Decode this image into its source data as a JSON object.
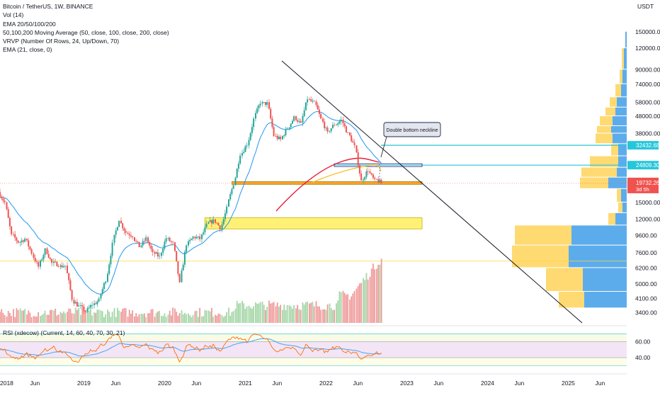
{
  "legend": {
    "symbol": "Bitcoin / TetherUS, 1W, BINANCE",
    "volume": "Vol (14)",
    "ema_set": "EMA 20/50/100/200",
    "ma_set": "50,100,200 Moving Average (50, close, 100, close, 200, close)",
    "vrvp": "VRVP (Number Of Rows, 24, Up/Down, 70)",
    "ema21": "EMA (21, close, 0)"
  },
  "rsi_legend": "RSI (xdecow) (Current, 14, 60, 40, 70, 30, 21)",
  "currency": "USDT",
  "annotation": "Double bottom neckline",
  "colors": {
    "up": "#26a69a",
    "down": "#ef5350",
    "ema21": "#2196f3",
    "ma_red": "#e91e3c",
    "ma_yellow": "#fbc02d",
    "zone": "#fff176",
    "vrvp_up": "#4aa3ea",
    "vrvp_down": "#ffd45a",
    "trendline": "#131722",
    "neckline": "#26c6da",
    "price_tag": "#ef5350",
    "rsi_line": "#ff6d00",
    "rsi_signal": "#42a5f5"
  },
  "chart_data": {
    "type": "candlestick",
    "price_scale": "log",
    "ylim": [
      2900,
      230000
    ],
    "y_ticks": [
      150000,
      120000,
      90000,
      74000,
      58000,
      48000,
      38000,
      30000,
      24000,
      19000,
      15000,
      12000,
      9600,
      7600,
      6200,
      5000,
      4100,
      3400
    ],
    "y_tick_labels": [
      "150000.00",
      "120000.00",
      "90000.00",
      "74000.00",
      "58000.00",
      "48000.00",
      "38000.00",
      "",
      "",
      "",
      "15000.00",
      "12000.00",
      "9600.00",
      "7600.00",
      "6200.00",
      "5000.00",
      "4100.00",
      "3400.00"
    ],
    "x_labels": [
      "2018",
      "Jun",
      "2019",
      "Jun",
      "2020",
      "Jun",
      "2021",
      "Jun",
      "2022",
      "Jun",
      "2023",
      "Jun",
      "2024",
      "Jun",
      "2025",
      "Jun"
    ],
    "weekly_close_anchors": [
      [
        "2018-01",
        15000
      ],
      [
        "2018-02",
        9600
      ],
      [
        "2018-03",
        8800
      ],
      [
        "2018-04",
        9200
      ],
      [
        "2018-05",
        7600
      ],
      [
        "2018-06",
        6300
      ],
      [
        "2018-07",
        7900
      ],
      [
        "2018-08",
        6600
      ],
      [
        "2018-09",
        6500
      ],
      [
        "2018-10",
        6400
      ],
      [
        "2018-11",
        4100
      ],
      [
        "2018-12",
        3700
      ],
      [
        "2019-01",
        3450
      ],
      [
        "2019-02",
        3800
      ],
      [
        "2019-03",
        4000
      ],
      [
        "2019-04",
        5300
      ],
      [
        "2019-05",
        8500
      ],
      [
        "2019-06",
        12000
      ],
      [
        "2019-07",
        10000
      ],
      [
        "2019-08",
        9600
      ],
      [
        "2019-09",
        8300
      ],
      [
        "2019-10",
        9200
      ],
      [
        "2019-11",
        7500
      ],
      [
        "2019-12",
        7200
      ],
      [
        "2020-01",
        9300
      ],
      [
        "2020-02",
        8600
      ],
      [
        "2020-03",
        5000
      ],
      [
        "2020-04",
        8600
      ],
      [
        "2020-05",
        9400
      ],
      [
        "2020-06",
        9200
      ],
      [
        "2020-07",
        11000
      ],
      [
        "2020-08",
        11700
      ],
      [
        "2020-09",
        10700
      ],
      [
        "2020-10",
        13800
      ],
      [
        "2020-11",
        19400
      ],
      [
        "2020-12",
        29000
      ],
      [
        "2021-01",
        33000
      ],
      [
        "2021-02",
        46000
      ],
      [
        "2021-03",
        58000
      ],
      [
        "2021-04",
        57000
      ],
      [
        "2021-05",
        37000
      ],
      [
        "2021-06",
        35000
      ],
      [
        "2021-07",
        41000
      ],
      [
        "2021-08",
        47000
      ],
      [
        "2021-09",
        43000
      ],
      [
        "2021-10",
        61000
      ],
      [
        "2021-11",
        57000
      ],
      [
        "2021-12",
        46000
      ],
      [
        "2022-01",
        38000
      ],
      [
        "2022-02",
        43000
      ],
      [
        "2022-03",
        45500
      ],
      [
        "2022-04",
        37700
      ],
      [
        "2022-05",
        31800
      ],
      [
        "2022-06",
        19900
      ],
      [
        "2022-07",
        23300
      ],
      [
        "2022-08",
        20000
      ],
      [
        "2022-09",
        19432
      ]
    ],
    "last_price": "19732.26",
    "last_price_countdown": "3d 5h",
    "levels": [
      {
        "label": "32432.68",
        "price": 32432.68
      },
      {
        "label": "24809.30",
        "price": 24809.3
      }
    ],
    "support_level": 19500,
    "demand_zone": [
      10500,
      12200
    ],
    "volume_series_note": "weekly volume histogram, rising into Jun 2022",
    "rsi": {
      "ylim": [
        25,
        80
      ],
      "y_ticks": [
        60,
        40
      ],
      "y_tick_labels": [
        "60.00",
        "40.00"
      ],
      "bands": [
        70,
        60,
        40,
        30
      ]
    }
  }
}
